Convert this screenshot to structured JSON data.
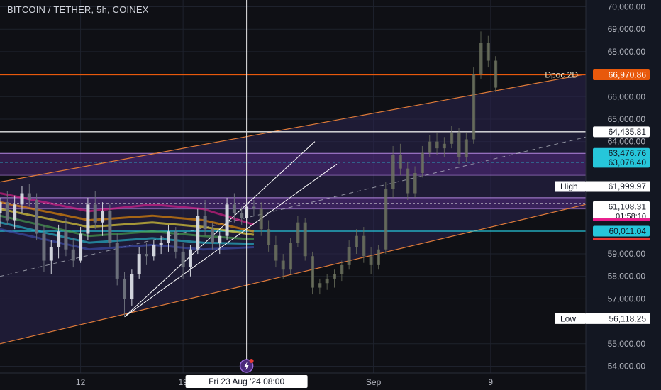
{
  "header": {
    "symbol_title": "BITCOIN / TETHER, 5h, COINEX"
  },
  "colors": {
    "background": "#0f1015",
    "price_axis_bg": "#131722",
    "grid": "#1e222d",
    "text": "#d1d4dc",
    "channel_orange": "#e07b39",
    "channel_fill": "#2b2450",
    "zone_fill": "#5a2d8a",
    "zone_line": "#b488e0",
    "cyan": "#26c6da",
    "white": "#e6e6e6",
    "magenta": "#e91e8c",
    "red": "#e53935",
    "bull_candle": "#d1d4dc",
    "bear_candle": "#6b6f7a",
    "ghost_candle": "#6f7460"
  },
  "chart_data": {
    "type": "candlestick",
    "title": "BITCOIN / TETHER, 5h, COINEX",
    "ylim": [
      53700,
      70300
    ],
    "y_ticks": [
      {
        "value": 70000,
        "label": "70,000.00"
      },
      {
        "value": 69000,
        "label": "69,000.00"
      },
      {
        "value": 68000,
        "label": "68,000.00"
      },
      {
        "value": 66000,
        "label": "66,000.00"
      },
      {
        "value": 65000,
        "label": "65,000.00"
      },
      {
        "value": 64000,
        "label": "64,000.00"
      },
      {
        "value": 59000,
        "label": "59,000.00"
      },
      {
        "value": 58000,
        "label": "58,000.00"
      },
      {
        "value": 57000,
        "label": "57,000.00"
      },
      {
        "value": 55000,
        "label": "55,000.00"
      },
      {
        "value": 54000,
        "label": "54,000.00"
      }
    ],
    "x_ticks": [
      {
        "date": "2024-08-12",
        "label": "12"
      },
      {
        "date": "2024-08-19",
        "label": "19"
      },
      {
        "date": "2024-09-01",
        "label": "Sep"
      },
      {
        "date": "2024-09-09",
        "label": "9"
      }
    ],
    "x_domain": [
      "2024-08-06 12:00",
      "2024-09-15 12:00"
    ],
    "crosshair": {
      "date": "2024-08-23 08:00",
      "label": "Fri 23 Aug '24   08:00"
    },
    "price_labels": [
      {
        "price": 66970.86,
        "text": "66,970.86",
        "color": "#e8590c",
        "text_color": "#ffffff"
      },
      {
        "price": 64435.81,
        "text": "64,435.81",
        "color": "#ffffff",
        "text_color": "#131722"
      },
      {
        "price": 63476.76,
        "text": "63,476.76",
        "color": "#26c6da",
        "text_color": "#131722"
      },
      {
        "price": 63076.4,
        "text": "63,076.40",
        "color": "#26c6da",
        "text_color": "#131722"
      },
      {
        "price": 61108.31,
        "text": "61,108.31",
        "color": "#ffffff",
        "text_color": "#131722",
        "countdown": "01:58:10"
      },
      {
        "price": 60011.04,
        "text": "60,011.04",
        "color": "#26c6da",
        "text_color": "#131722"
      }
    ],
    "hlines": [
      {
        "price": 66970.86,
        "color": "#e8590c",
        "label": "Dpoc 2D"
      },
      {
        "price": 64435.81,
        "color": "#e6e6e6"
      },
      {
        "price": 60011.04,
        "color": "#26c6da"
      }
    ],
    "zones": [
      {
        "from": 63476.76,
        "to": 62500,
        "inner_dashed": 63076.4
      },
      {
        "from": 61500,
        "to": 61000,
        "dashed_mid": 61250
      }
    ],
    "stat_labels": [
      {
        "name": "High",
        "price": 61999.97,
        "text": "61,999.97"
      },
      {
        "name": "Low",
        "price": 56118.25,
        "text": "56,118.25"
      }
    ],
    "channel": {
      "lower": [
        [
          "2024-08-06 12:00",
          55000
        ],
        [
          "2024-09-15 12:00",
          61200
        ]
      ],
      "upper": [
        [
          "2024-08-06 12:00",
          62200
        ],
        [
          "2024-09-15 12:00",
          67000
        ]
      ],
      "mid": [
        [
          "2024-08-06 12:00",
          58000
        ],
        [
          "2024-09-15 12:00",
          64200
        ]
      ]
    },
    "wedge": {
      "apex": [
        "2024-08-15 00:00",
        56200
      ],
      "upper_end": [
        "2024-08-28 00:00",
        64000
      ],
      "lower_end": [
        "2024-08-29 12:00",
        63000
      ]
    },
    "bands": [
      {
        "color": "#e91e8c",
        "values": [
          [
            0,
            61700
          ],
          [
            0.35,
            60900
          ],
          [
            0.6,
            61200
          ],
          [
            0.8,
            61000
          ],
          [
            1,
            60300
          ]
        ]
      },
      {
        "color": "#ff9800",
        "values": [
          [
            0,
            61300
          ],
          [
            0.35,
            60500
          ],
          [
            0.6,
            60700
          ],
          [
            0.8,
            60500
          ],
          [
            1,
            60000
          ]
        ]
      },
      {
        "color": "#ffeb3b",
        "values": [
          [
            0,
            61000
          ],
          [
            0.35,
            60200
          ],
          [
            0.6,
            60400
          ],
          [
            0.8,
            60200
          ],
          [
            1,
            59850
          ]
        ]
      },
      {
        "color": "#4caf50",
        "values": [
          [
            0,
            60700
          ],
          [
            0.35,
            59800
          ],
          [
            0.6,
            60000
          ],
          [
            0.8,
            59800
          ],
          [
            1,
            59650
          ]
        ]
      },
      {
        "color": "#26c6da",
        "values": [
          [
            0,
            60400
          ],
          [
            0.35,
            59500
          ],
          [
            0.6,
            59700
          ],
          [
            0.8,
            59500
          ],
          [
            1,
            59450
          ]
        ]
      },
      {
        "color": "#3f51b5",
        "values": [
          [
            0,
            60100
          ],
          [
            0.35,
            59200
          ],
          [
            0.6,
            59400
          ],
          [
            0.8,
            59200
          ],
          [
            1,
            59300
          ]
        ]
      }
    ],
    "band_range": [
      "2024-08-06 12:00",
      "2024-08-23 20:00"
    ],
    "candles": [
      {
        "t": "2024-08-06 12:00",
        "o": 60800,
        "h": 61500,
        "l": 60200,
        "c": 61300
      },
      {
        "t": "2024-08-07 00:00",
        "o": 61300,
        "h": 61800,
        "l": 60300,
        "c": 60500
      },
      {
        "t": "2024-08-07 12:00",
        "o": 60500,
        "h": 61600,
        "l": 60100,
        "c": 61200
      },
      {
        "t": "2024-08-08 00:00",
        "o": 61200,
        "h": 62000,
        "l": 60800,
        "c": 61700
      },
      {
        "t": "2024-08-08 12:00",
        "o": 61700,
        "h": 62100,
        "l": 61100,
        "c": 61400
      },
      {
        "t": "2024-08-09 00:00",
        "o": 61400,
        "h": 61700,
        "l": 59600,
        "c": 59900
      },
      {
        "t": "2024-08-09 12:00",
        "o": 59900,
        "h": 60300,
        "l": 58200,
        "c": 58700
      },
      {
        "t": "2024-08-10 00:00",
        "o": 58700,
        "h": 59600,
        "l": 58100,
        "c": 59300
      },
      {
        "t": "2024-08-10 12:00",
        "o": 59300,
        "h": 60300,
        "l": 58800,
        "c": 60000
      },
      {
        "t": "2024-08-11 00:00",
        "o": 60000,
        "h": 60600,
        "l": 58900,
        "c": 59200
      },
      {
        "t": "2024-08-11 12:00",
        "o": 59200,
        "h": 59700,
        "l": 58400,
        "c": 58700
      },
      {
        "t": "2024-08-12 00:00",
        "o": 58700,
        "h": 60200,
        "l": 58600,
        "c": 59900
      },
      {
        "t": "2024-08-12 12:00",
        "o": 59900,
        "h": 61500,
        "l": 59600,
        "c": 61200
      },
      {
        "t": "2024-08-13 00:00",
        "o": 61200,
        "h": 61800,
        "l": 60100,
        "c": 60400
      },
      {
        "t": "2024-08-13 12:00",
        "o": 60400,
        "h": 61300,
        "l": 59800,
        "c": 60900
      },
      {
        "t": "2024-08-14 00:00",
        "o": 60900,
        "h": 61200,
        "l": 59300,
        "c": 59500
      },
      {
        "t": "2024-08-14 12:00",
        "o": 59500,
        "h": 59900,
        "l": 57600,
        "c": 57900
      },
      {
        "t": "2024-08-15 00:00",
        "o": 57900,
        "h": 58200,
        "l": 56200,
        "c": 57000
      },
      {
        "t": "2024-08-15 12:00",
        "o": 57000,
        "h": 58300,
        "l": 56700,
        "c": 58100
      },
      {
        "t": "2024-08-16 00:00",
        "o": 58100,
        "h": 59300,
        "l": 57900,
        "c": 59000
      },
      {
        "t": "2024-08-16 12:00",
        "o": 59000,
        "h": 59500,
        "l": 58500,
        "c": 58900
      },
      {
        "t": "2024-08-17 00:00",
        "o": 58900,
        "h": 59600,
        "l": 58700,
        "c": 59400
      },
      {
        "t": "2024-08-17 12:00",
        "o": 59400,
        "h": 59800,
        "l": 59000,
        "c": 59500
      },
      {
        "t": "2024-08-18 00:00",
        "o": 59500,
        "h": 60300,
        "l": 59100,
        "c": 60000
      },
      {
        "t": "2024-08-18 12:00",
        "o": 60000,
        "h": 60200,
        "l": 58800,
        "c": 59100
      },
      {
        "t": "2024-08-19 00:00",
        "o": 59100,
        "h": 59500,
        "l": 57900,
        "c": 58400
      },
      {
        "t": "2024-08-19 12:00",
        "o": 58400,
        "h": 59400,
        "l": 58000,
        "c": 59200
      },
      {
        "t": "2024-08-20 00:00",
        "o": 59200,
        "h": 61000,
        "l": 59000,
        "c": 60700
      },
      {
        "t": "2024-08-20 12:00",
        "o": 60700,
        "h": 61400,
        "l": 59800,
        "c": 60100
      },
      {
        "t": "2024-08-21 00:00",
        "o": 60100,
        "h": 60400,
        "l": 59200,
        "c": 59500
      },
      {
        "t": "2024-08-21 12:00",
        "o": 59500,
        "h": 60000,
        "l": 59000,
        "c": 59800
      },
      {
        "t": "2024-08-22 00:00",
        "o": 59800,
        "h": 61500,
        "l": 59600,
        "c": 61200
      },
      {
        "t": "2024-08-22 12:00",
        "o": 61200,
        "h": 61700,
        "l": 60400,
        "c": 60800
      },
      {
        "t": "2024-08-23 00:00",
        "o": 60800,
        "h": 61100,
        "l": 60300,
        "c": 60600
      },
      {
        "t": "2024-08-23 08:00",
        "o": 60600,
        "h": 61300,
        "l": 60400,
        "c": 61100
      },
      {
        "t": "2024-08-23 20:00",
        "o": 61100,
        "h": 61400,
        "l": 60700,
        "c": 61000
      }
    ],
    "ghost_candles": [
      {
        "t": "2024-08-24 08:00",
        "o": 61000,
        "h": 61300,
        "l": 59800,
        "c": 60100
      },
      {
        "t": "2024-08-24 20:00",
        "o": 60100,
        "h": 60500,
        "l": 59100,
        "c": 59400
      },
      {
        "t": "2024-08-25 08:00",
        "o": 59400,
        "h": 59800,
        "l": 58400,
        "c": 58700
      },
      {
        "t": "2024-08-25 20:00",
        "o": 58700,
        "h": 59000,
        "l": 57900,
        "c": 58300
      },
      {
        "t": "2024-08-26 08:00",
        "o": 58300,
        "h": 59700,
        "l": 58100,
        "c": 59500
      },
      {
        "t": "2024-08-26 20:00",
        "o": 59500,
        "h": 60700,
        "l": 59300,
        "c": 60400
      },
      {
        "t": "2024-08-27 08:00",
        "o": 60400,
        "h": 60600,
        "l": 58700,
        "c": 58900
      },
      {
        "t": "2024-08-27 20:00",
        "o": 58900,
        "h": 59100,
        "l": 57200,
        "c": 57500
      },
      {
        "t": "2024-08-28 08:00",
        "o": 57500,
        "h": 57900,
        "l": 57200,
        "c": 57700
      },
      {
        "t": "2024-08-28 20:00",
        "o": 57700,
        "h": 58100,
        "l": 57400,
        "c": 57900
      },
      {
        "t": "2024-08-29 08:00",
        "o": 57900,
        "h": 58300,
        "l": 57500,
        "c": 58100
      },
      {
        "t": "2024-08-29 20:00",
        "o": 58100,
        "h": 58700,
        "l": 57800,
        "c": 58500
      },
      {
        "t": "2024-08-30 08:00",
        "o": 58500,
        "h": 59600,
        "l": 58300,
        "c": 59300
      },
      {
        "t": "2024-08-30 20:00",
        "o": 59300,
        "h": 60100,
        "l": 59000,
        "c": 59800
      },
      {
        "t": "2024-08-31 08:00",
        "o": 59800,
        "h": 60200,
        "l": 58600,
        "c": 58900
      },
      {
        "t": "2024-08-31 20:00",
        "o": 58900,
        "h": 59300,
        "l": 58100,
        "c": 58500
      },
      {
        "t": "2024-09-01 08:00",
        "o": 58500,
        "h": 59400,
        "l": 58300,
        "c": 59200
      },
      {
        "t": "2024-09-01 20:00",
        "o": 59200,
        "h": 62200,
        "l": 59000,
        "c": 61900
      },
      {
        "t": "2024-09-02 08:00",
        "o": 61900,
        "h": 63800,
        "l": 61500,
        "c": 63400
      },
      {
        "t": "2024-09-02 20:00",
        "o": 63400,
        "h": 63900,
        "l": 62500,
        "c": 62800
      },
      {
        "t": "2024-09-03 08:00",
        "o": 62800,
        "h": 63100,
        "l": 61400,
        "c": 61700
      },
      {
        "t": "2024-09-03 20:00",
        "o": 61700,
        "h": 62900,
        "l": 61500,
        "c": 62600
      },
      {
        "t": "2024-09-04 08:00",
        "o": 62600,
        "h": 63800,
        "l": 62400,
        "c": 63500
      },
      {
        "t": "2024-09-04 20:00",
        "o": 63500,
        "h": 64300,
        "l": 63300,
        "c": 64000
      },
      {
        "t": "2024-09-05 08:00",
        "o": 64000,
        "h": 64400,
        "l": 63400,
        "c": 63700
      },
      {
        "t": "2024-09-05 20:00",
        "o": 63700,
        "h": 64200,
        "l": 63300,
        "c": 63900
      },
      {
        "t": "2024-09-06 08:00",
        "o": 63900,
        "h": 64700,
        "l": 63700,
        "c": 64400
      },
      {
        "t": "2024-09-06 20:00",
        "o": 64400,
        "h": 64600,
        "l": 63000,
        "c": 63300
      },
      {
        "t": "2024-09-07 08:00",
        "o": 63300,
        "h": 64400,
        "l": 63100,
        "c": 64100
      },
      {
        "t": "2024-09-07 20:00",
        "o": 64100,
        "h": 67300,
        "l": 63900,
        "c": 67000
      },
      {
        "t": "2024-09-08 08:00",
        "o": 67000,
        "h": 68900,
        "l": 66800,
        "c": 68400
      },
      {
        "t": "2024-09-08 20:00",
        "o": 68400,
        "h": 68700,
        "l": 67300,
        "c": 67600
      },
      {
        "t": "2024-09-09 08:00",
        "o": 67600,
        "h": 67800,
        "l": 66200,
        "c": 66400
      }
    ]
  }
}
